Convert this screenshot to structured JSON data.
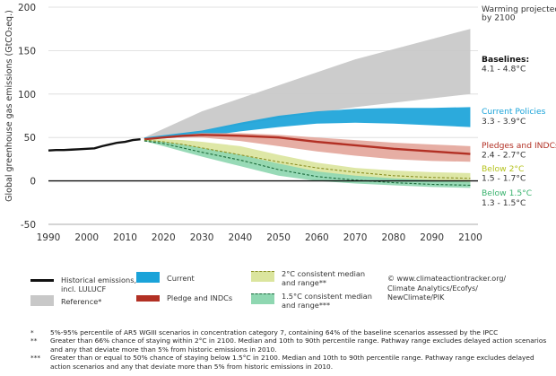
{
  "chart_data": {
    "type": "area",
    "ylabel": "Global greenhouse gas emissions (GtCO₂eq.)",
    "xlim": [
      1990,
      2102
    ],
    "ylim": [
      -50,
      200
    ],
    "yticks": [
      -50,
      0,
      50,
      100,
      150,
      200
    ],
    "xticks": [
      1990,
      2000,
      2010,
      2020,
      2030,
      2040,
      2050,
      2060,
      2070,
      2080,
      2090,
      2100
    ],
    "grid": "horizontal",
    "series": [
      {
        "name": "Reference*",
        "kind": "band",
        "color": "#c8c8c8",
        "x": [
          2015,
          2030,
          2050,
          2070,
          2100
        ],
        "low": [
          48,
          57,
          72,
          85,
          100
        ],
        "high": [
          50,
          80,
          110,
          140,
          175
        ]
      },
      {
        "name": "Current",
        "kind": "band",
        "color": "#1aa3d9",
        "x": [
          2015,
          2030,
          2040,
          2050,
          2060,
          2070,
          2080,
          2090,
          2100
        ],
        "low": [
          48,
          51,
          57,
          62,
          66,
          67,
          66,
          64,
          62
        ],
        "high": [
          50,
          58,
          67,
          75,
          80,
          83,
          84,
          84,
          85
        ]
      },
      {
        "name": "Pledge and INDCs",
        "kind": "band_median",
        "color": "#e4a79c",
        "line_color": "#b23024",
        "x": [
          2015,
          2020,
          2025,
          2030,
          2040,
          2050,
          2060,
          2070,
          2080,
          2090,
          2100
        ],
        "low": [
          48,
          49,
          50,
          50,
          46,
          40,
          34,
          29,
          25,
          23,
          22
        ],
        "high": [
          49,
          51,
          53,
          55,
          55,
          53,
          50,
          47,
          44,
          42,
          40
        ],
        "median": [
          48,
          50,
          52,
          53,
          52,
          50,
          45,
          41,
          37,
          34,
          31
        ]
      },
      {
        "name": "2°C consistent median and range**",
        "kind": "band_median",
        "color": "#dbe59e",
        "line_color": "#8a8f25",
        "x": [
          2015,
          2020,
          2025,
          2030,
          2040,
          2050,
          2060,
          2070,
          2080,
          2090,
          2100
        ],
        "low": [
          47,
          42,
          37,
          32,
          22,
          13,
          8,
          4,
          1,
          -1,
          -3
        ],
        "high": [
          48,
          48,
          47,
          45,
          40,
          30,
          21,
          15,
          12,
          10,
          9
        ],
        "median": [
          47,
          45,
          42,
          38,
          30,
          22,
          15,
          10,
          6,
          4,
          3
        ]
      },
      {
        "name": "1.5°C consistent median and range***",
        "kind": "band_median",
        "color": "#8fd7b1",
        "line_color": "#1c6b3c",
        "x": [
          2015,
          2020,
          2025,
          2030,
          2040,
          2050,
          2060,
          2070,
          2080,
          2090,
          2100
        ],
        "low": [
          46,
          40,
          34,
          28,
          17,
          6,
          0,
          -3,
          -5,
          -7,
          -8
        ],
        "high": [
          47,
          45,
          42,
          38,
          30,
          20,
          11,
          6,
          3,
          1,
          -1
        ],
        "median": [
          46,
          43,
          38,
          33,
          24,
          13,
          5,
          1,
          -2,
          -4,
          -5
        ]
      },
      {
        "name": "Historical emissions, incl. LULUCF",
        "kind": "line",
        "color": "#111111",
        "x": [
          1990,
          1992,
          1994,
          1996,
          1998,
          2000,
          2002,
          2004,
          2006,
          2008,
          2010,
          2012,
          2014
        ],
        "y": [
          35,
          35.5,
          35.5,
          36,
          36.5,
          37,
          37.5,
          40,
          42,
          44,
          45,
          47,
          48
        ]
      }
    ],
    "right_labels": [
      {
        "text": "Warming projected",
        "y": 198,
        "color": "#333333",
        "weight": "normal"
      },
      {
        "text": "by 2100",
        "y": 188,
        "color": "#333333",
        "weight": "normal"
      },
      {
        "text": "Baselines:",
        "y": 140,
        "color": "#111111",
        "weight": "bold"
      },
      {
        "text": "4.1 - 4.8°C",
        "y": 129,
        "color": "#333333",
        "weight": "normal"
      },
      {
        "text": "Current Policies",
        "y": 80,
        "color": "#1aa3d9",
        "weight": "normal"
      },
      {
        "text": "3.3 - 3.9°C",
        "y": 69,
        "color": "#333333",
        "weight": "normal"
      },
      {
        "text": "Pledges and INDCs",
        "y": 41,
        "color": "#b23024",
        "weight": "normal"
      },
      {
        "text": "2.4 - 2.7°C",
        "y": 30,
        "color": "#333333",
        "weight": "normal"
      },
      {
        "text": "Below 2°C",
        "y": 14,
        "color": "#b5c21e",
        "weight": "normal"
      },
      {
        "text": "1.5 - 1.7°C",
        "y": 3,
        "color": "#333333",
        "weight": "normal"
      },
      {
        "text": "Below 1.5°C",
        "y": -14,
        "color": "#3bb36f",
        "weight": "normal"
      },
      {
        "text": "1.3 - 1.5°C",
        "y": -25,
        "color": "#333333",
        "weight": "normal"
      }
    ]
  },
  "legend": {
    "historical": "Historical emissions,\nincl. LULUCF",
    "reference": "Reference*",
    "current": "Current",
    "pledge": "Pledge and INDCs",
    "two_c": "2°C consistent median\nand range**",
    "one5_c": "1.5°C consistent median\nand range***",
    "credit": "© www.climateactiontracker.org/\nClimate Analytics/Ecofys/\nNewClimate/PIK"
  },
  "notes": [
    {
      "mark": "*",
      "text": "5%-95% percentile of AR5 WGIII scenarios in concentration category 7, containing 64% of the baseline scenarios assessed by the IPCC"
    },
    {
      "mark": "**",
      "text": "Greater than 66% chance of staying within 2°C in 2100. Median and 10th to 90th percentile range. Pathway range excludes delayed action scenarios and any that deviate more than 5% from historic emissions in 2010."
    },
    {
      "mark": "***",
      "text": "Greater than or equal to 50% chance of staying below 1.5°C in 2100. Median and 10th to 90th percentile range. Pathway range excludes delayed action scenarios and any that deviate more than 5% from historic emissions in 2010."
    }
  ]
}
